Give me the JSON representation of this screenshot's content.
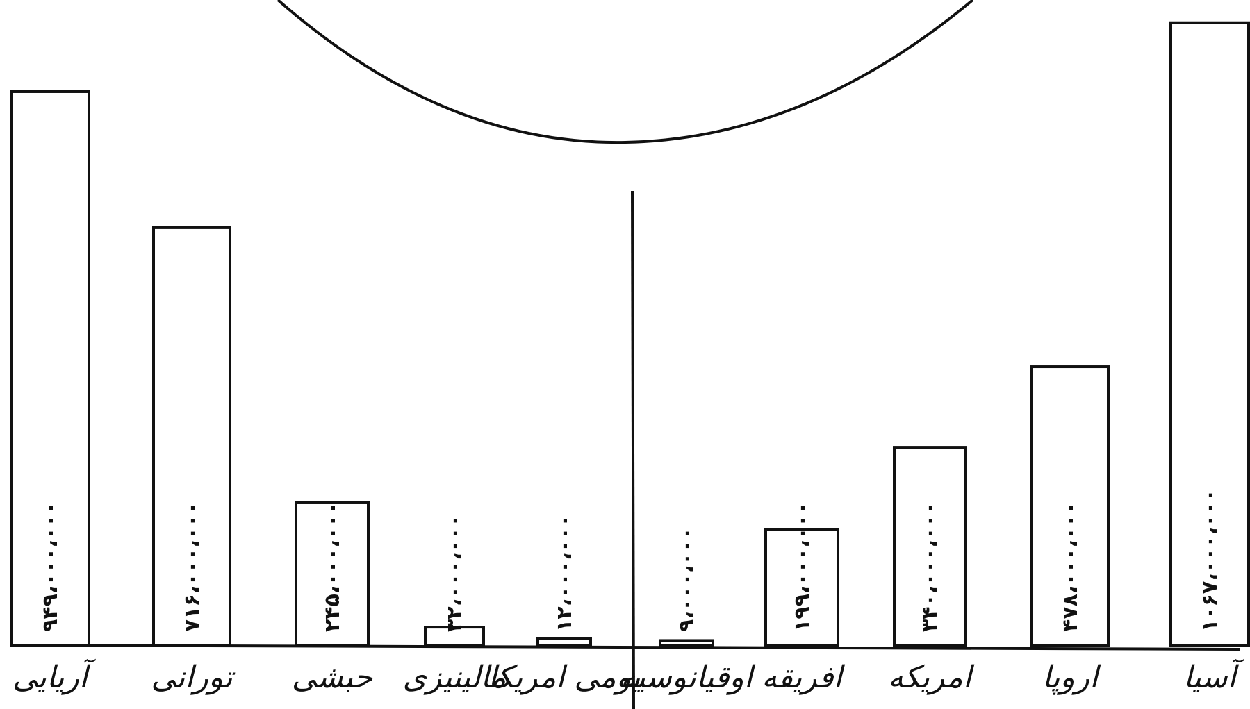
{
  "chart_data": [
    {
      "type": "bar",
      "categories": [
        "آریایی",
        "تورانی",
        "حبشی",
        "مالینیزی",
        "بومی امریکا"
      ],
      "value_labels": [
        "۹۴۹،۰۰۰،۰۰۰",
        "۷۱۶،۰۰۰،۰۰۰",
        "۲۴۵،۰۰۰،۰۰۰",
        "۳۲،۰۰۰،۰۰۰",
        "۱۲،۰۰۰،۰۰۰"
      ],
      "values": [
        949000000,
        716000000,
        245000000,
        32000000,
        12000000
      ],
      "ylim": [
        0,
        1100000000
      ]
    },
    {
      "type": "bar",
      "categories": [
        "اوقیانوسیه",
        "افریقه",
        "امریکه",
        "اروپا",
        "آسیا"
      ],
      "value_labels": [
        "۹،۰۰۰،۰۰۰",
        "۱۹۹،۰۰۰،۰۰۰",
        "۳۴۰،۰۰۰،۰۰۰",
        "۴۷۸،۰۰۰،۰۰۰",
        "۱۰۶۷،۰۰۰،۰۰۰"
      ],
      "values": [
        9000000,
        199000000,
        340000000,
        478000000,
        1067000000
      ],
      "ylim": [
        0,
        1100000000
      ]
    }
  ]
}
